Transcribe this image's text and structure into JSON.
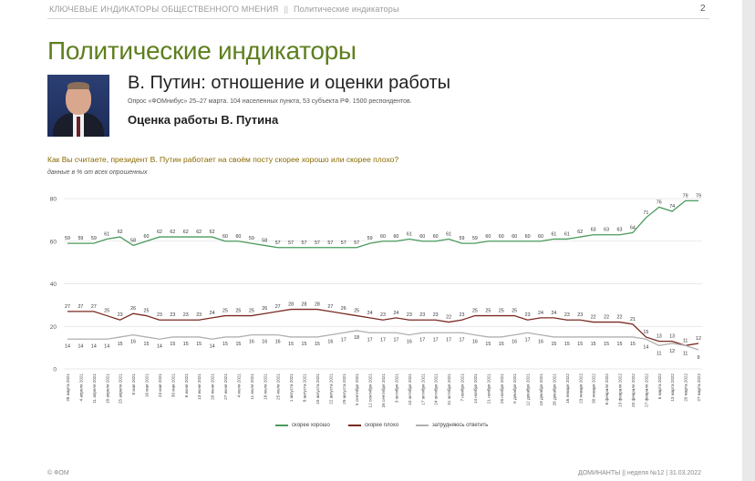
{
  "header": {
    "section": "КЛЮЧЕВЫЕ ИНДИКАТОРЫ ОБЩЕСТВЕННОГО МНЕНИЯ",
    "separator": "||",
    "subsection": "Политические индикаторы",
    "page_number": "2"
  },
  "title": "Политические индикаторы",
  "subtitle": "В. Путин: отношение и оценки работы",
  "survey_note": "Опрос «ФОМнибус» 25–27 марта. 104 населенных пункта, 53 субъекта РФ. 1500 респондентов.",
  "subheading": "Оценка работы В. Путина",
  "question": "Как Вы считаете, президент В. Путин работает на своём посту скорее хорошо или скорее плохо?",
  "data_note": "данные в % от всех опрошенных",
  "footer": {
    "left": "© ФОМ",
    "right": "ДОМИНАНТЫ  ||  неделя №12  |  31.03.2022"
  },
  "photo_icon": "portrait-photo",
  "chart_data": {
    "type": "line",
    "ylim": [
      0,
      80
    ],
    "yticks": [
      0,
      20,
      40,
      60,
      80
    ],
    "grid": true,
    "legend_position": "bottom",
    "categories": [
      "28 марта 2021",
      "4 апреля 2021",
      "11 апреля 2021",
      "18 апреля 2021",
      "25 апреля 2021",
      "8 мая 2021",
      "16 мая 2021",
      "23 мая 2021",
      "30 мая 2021",
      "6 июня 2021",
      "13 июня 2021",
      "20 июня 2021",
      "27 июня 2021",
      "4 июля 2021",
      "11 июля 2021",
      "18 июля 2021",
      "25 июля 2021",
      "1 августа 2021",
      "8 августа 2021",
      "15 августа 2021",
      "22 августа 2021",
      "29 августа 2021",
      "5 сентября 2021",
      "12 сентября 2021",
      "26 сентября 2021",
      "3 октября 2021",
      "10 октября 2021",
      "17 октября 2021",
      "24 октября 2021",
      "31 октября 2021",
      "7 ноября 2021",
      "14 ноября 2021",
      "21 ноября 2021",
      "28 ноября 2021",
      "5 декабря 2021",
      "12 декабря 2021",
      "19 декабря 2021",
      "26 декабря 2021",
      "16 января 2022",
      "23 января 2022",
      "30 января 2022",
      "6 февраля 2022",
      "13 февраля 2022",
      "20 февраля 2022",
      "27 февраля 2022",
      "6 марта 2022",
      "13 марта 2022",
      "20 марта 2022",
      "27 марта 2022"
    ],
    "series": [
      {
        "name": "скорее хорошо",
        "color": "#4a9a5c",
        "values": [
          59,
          59,
          59,
          61,
          62,
          58,
          60,
          62,
          62,
          62,
          62,
          62,
          60,
          60,
          59,
          58,
          57,
          57,
          57,
          57,
          57,
          57,
          57,
          59,
          60,
          60,
          61,
          60,
          60,
          61,
          59,
          59,
          60,
          60,
          60,
          60,
          60,
          61,
          61,
          62,
          63,
          63,
          63,
          64,
          71,
          76,
          74,
          79,
          79
        ]
      },
      {
        "name": "скорее плохо",
        "color": "#7a2a22",
        "values": [
          27,
          27,
          27,
          25,
          23,
          26,
          25,
          23,
          23,
          23,
          23,
          24,
          25,
          25,
          25,
          26,
          27,
          28,
          28,
          28,
          27,
          26,
          25,
          24,
          23,
          24,
          23,
          23,
          23,
          22,
          23,
          25,
          25,
          25,
          25,
          23,
          24,
          24,
          23,
          23,
          22,
          22,
          22,
          21,
          15,
          13,
          13,
          11,
          12
        ]
      },
      {
        "name": "затрудняюсь ответить",
        "color": "#b0b0b0",
        "values": [
          14,
          14,
          14,
          14,
          15,
          16,
          15,
          14,
          15,
          15,
          15,
          14,
          15,
          15,
          16,
          16,
          16,
          15,
          15,
          15,
          16,
          17,
          18,
          17,
          17,
          17,
          16,
          17,
          17,
          17,
          17,
          16,
          15,
          15,
          16,
          17,
          16,
          15,
          15,
          15,
          15,
          15,
          15,
          15,
          14,
          11,
          12,
          11,
          9
        ]
      }
    ]
  }
}
